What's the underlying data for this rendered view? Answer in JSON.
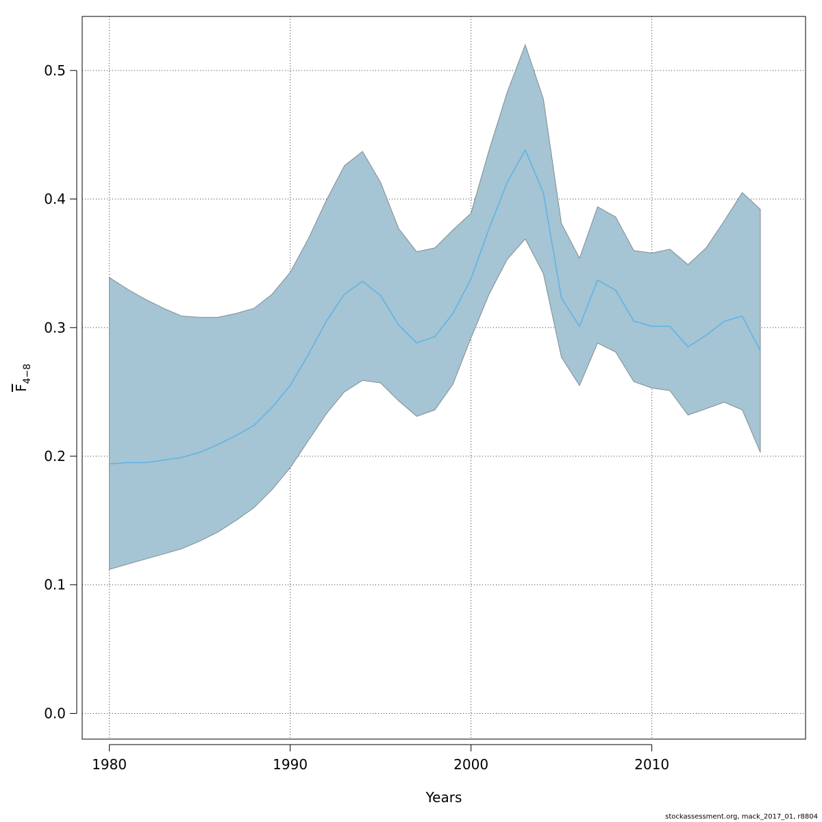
{
  "chart_data": {
    "type": "area",
    "xlabel": "Years",
    "ylabel": "F",
    "ylabel_subscript": "4−8",
    "xlim": [
      1978.5,
      2018.5
    ],
    "ylim": [
      -0.02,
      0.542
    ],
    "x_ticks": [
      1980,
      1990,
      2000,
      2010
    ],
    "x_tick_labels": [
      "1980",
      "1990",
      "2000",
      "2010"
    ],
    "y_ticks": [
      0.0,
      0.1,
      0.2,
      0.3,
      0.4,
      0.5
    ],
    "y_tick_labels": [
      "0.0",
      "0.1",
      "0.2",
      "0.3",
      "0.4",
      "0.5"
    ],
    "grid": true,
    "x": [
      1980,
      1981,
      1982,
      1983,
      1984,
      1985,
      1986,
      1987,
      1988,
      1989,
      1990,
      1991,
      1992,
      1993,
      1994,
      1995,
      1996,
      1997,
      1998,
      1999,
      2000,
      2001,
      2002,
      2003,
      2004,
      2005,
      2006,
      2007,
      2008,
      2009,
      2010,
      2011,
      2012,
      2013,
      2014,
      2015,
      2016
    ],
    "series": [
      {
        "values": [
          0.194,
          0.195,
          0.195,
          0.197,
          0.199,
          0.203,
          0.209,
          0.216,
          0.224,
          0.238,
          0.255,
          0.279,
          0.305,
          0.326,
          0.336,
          0.325,
          0.302,
          0.288,
          0.293,
          0.311,
          0.338,
          0.377,
          0.413,
          0.438,
          0.405,
          0.323,
          0.301,
          0.337,
          0.329,
          0.305,
          0.301,
          0.301,
          0.285,
          0.294,
          0.305,
          0.309,
          0.282
        ],
        "lower": [
          0.112,
          0.116,
          0.12,
          0.124,
          0.128,
          0.134,
          0.141,
          0.15,
          0.16,
          0.174,
          0.191,
          0.212,
          0.233,
          0.25,
          0.259,
          0.257,
          0.243,
          0.231,
          0.236,
          0.256,
          0.292,
          0.326,
          0.353,
          0.369,
          0.342,
          0.277,
          0.255,
          0.288,
          0.281,
          0.258,
          0.253,
          0.251,
          0.232,
          0.237,
          0.242,
          0.236,
          0.203
        ],
        "upper": [
          0.339,
          0.33,
          0.322,
          0.315,
          0.309,
          0.308,
          0.308,
          0.311,
          0.315,
          0.326,
          0.343,
          0.369,
          0.399,
          0.426,
          0.437,
          0.413,
          0.377,
          0.359,
          0.362,
          0.376,
          0.389,
          0.438,
          0.483,
          0.52,
          0.478,
          0.381,
          0.354,
          0.394,
          0.386,
          0.36,
          0.358,
          0.361,
          0.349,
          0.362,
          0.383,
          0.405,
          0.392
        ]
      }
    ],
    "colors": {
      "band_fill": "#a5c4d4",
      "band_stroke": "#7f8c92",
      "line": "#5ab4e5",
      "grid": "#333333",
      "axis": "#000000"
    }
  },
  "footnote": "stockassessment.org, mack_2017_01, r8804"
}
